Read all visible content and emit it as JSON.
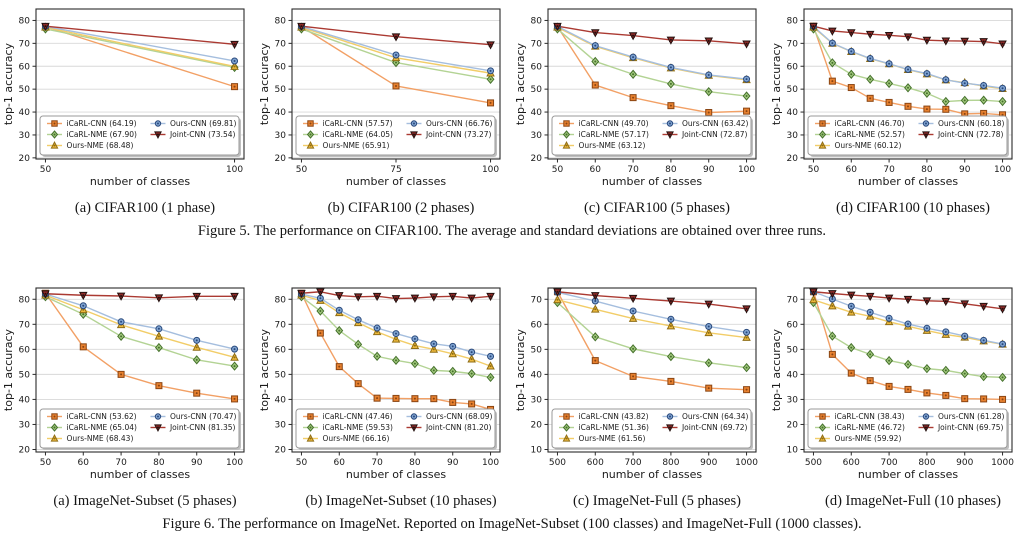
{
  "colors": {
    "background": "#ffffff",
    "grid": "#d8d8d8",
    "axis_border": "#2b2b2b",
    "tick_text": "#1a1a1a",
    "legend_border": "#999999",
    "legend_shadow": "#bfbfbf"
  },
  "palette": {
    "iCaRL-CNN": {
      "marker": "square",
      "line": "#f2a065",
      "fill": "#e8812f",
      "edge": "#8a4513"
    },
    "iCaRL-NME": {
      "marker": "diamond",
      "line": "#b3d394",
      "fill": "#a2c87d",
      "edge": "#45712c"
    },
    "Ours-NME": {
      "marker": "triangle-up",
      "line": "#f2cd68",
      "fill": "#edb93c",
      "edge": "#8f6d14"
    },
    "Ours-CNN": {
      "marker": "circle",
      "line": "#a5bede",
      "fill": "#7fa3d1",
      "edge": "#29497c"
    },
    "Joint-CNN": {
      "marker": "triangle-down",
      "line": "#ab3a32",
      "fill": "#8e2a28",
      "edge": "#23100e"
    }
  },
  "figures": [
    {
      "caption": "Figure 5. The performance on CIFAR100. The average and standard deviations are obtained over three runs."
    },
    {
      "caption": "Figure 6. The performance on ImageNet. Reported on ImageNet-Subset (100 classes) and ImageNet-Full (1000 classes)."
    }
  ],
  "chart_data": [
    {
      "subcaption": "(a) CIFAR100 (1 phase)",
      "type": "line",
      "xlabel": "number of classes",
      "ylabel": "top-1 accuracy",
      "x": [
        50,
        100
      ],
      "xticks": [
        50,
        100
      ],
      "yticks": [
        20,
        30,
        40,
        50,
        60,
        70,
        80
      ],
      "ylim": [
        19.5,
        85
      ],
      "err": 0.7,
      "legend": {
        "position": "lower left",
        "columns": 2
      },
      "series": [
        {
          "name": "iCaRL-CNN",
          "label": "iCaRL-CNN (64.19)",
          "values": [
            77.3,
            51.1
          ]
        },
        {
          "name": "iCaRL-NME",
          "label": "iCaRL-NME (67.90)",
          "values": [
            76.3,
            59.5
          ]
        },
        {
          "name": "Ours-NME",
          "label": "Ours-NME (68.48)",
          "values": [
            77.0,
            59.9
          ]
        },
        {
          "name": "Ours-CNN",
          "label": "Ours-CNN (69.81)",
          "values": [
            77.4,
            62.3
          ]
        },
        {
          "name": "Joint-CNN",
          "label": "Joint-CNN (73.54)",
          "values": [
            77.5,
            69.6
          ]
        }
      ]
    },
    {
      "subcaption": "(b) CIFAR100 (2 phases)",
      "type": "line",
      "xlabel": "number of classes",
      "ylabel": "top-1 accuracy",
      "x": [
        50,
        75,
        100
      ],
      "xticks": [
        50,
        75,
        100
      ],
      "yticks": [
        20,
        30,
        40,
        50,
        60,
        70,
        80
      ],
      "ylim": [
        19.5,
        85
      ],
      "err": 0.7,
      "legend": {
        "position": "lower left",
        "columns": 2
      },
      "series": [
        {
          "name": "iCaRL-CNN",
          "label": "iCaRL-CNN (57.57)",
          "values": [
            77.3,
            51.4,
            44.0
          ]
        },
        {
          "name": "iCaRL-NME",
          "label": "iCaRL-NME (64.05)",
          "values": [
            76.3,
            61.6,
            54.3
          ]
        },
        {
          "name": "Ours-NME",
          "label": "Ours-NME (65.91)",
          "values": [
            77.0,
            63.7,
            57.0
          ]
        },
        {
          "name": "Ours-CNN",
          "label": "Ours-CNN (66.76)",
          "values": [
            77.4,
            64.9,
            58.0
          ]
        },
        {
          "name": "Joint-CNN",
          "label": "Joint-CNN (73.27)",
          "values": [
            77.5,
            72.9,
            69.4
          ]
        }
      ]
    },
    {
      "subcaption": "(c) CIFAR100 (5 phases)",
      "type": "line",
      "xlabel": "number of classes",
      "ylabel": "top-1 accuracy",
      "x": [
        50,
        60,
        70,
        80,
        90,
        100
      ],
      "xticks": [
        50,
        60,
        70,
        80,
        90,
        100
      ],
      "yticks": [
        20,
        30,
        40,
        50,
        60,
        70,
        80
      ],
      "ylim": [
        19.5,
        85
      ],
      "err": 0.7,
      "legend": {
        "position": "lower left",
        "columns": 2
      },
      "series": [
        {
          "name": "iCaRL-CNN",
          "label": "iCaRL-CNN (49.70)",
          "values": [
            77.3,
            51.8,
            46.3,
            42.8,
            39.8,
            40.4
          ]
        },
        {
          "name": "iCaRL-NME",
          "label": "iCaRL-NME (57.17)",
          "values": [
            76.3,
            62.1,
            56.5,
            52.3,
            48.9,
            47.0
          ]
        },
        {
          "name": "Ours-NME",
          "label": "Ours-NME (63.12)",
          "values": [
            77.0,
            68.7,
            63.7,
            59.2,
            56.0,
            54.1
          ]
        },
        {
          "name": "Ours-CNN",
          "label": "Ours-CNN (63.42)",
          "values": [
            77.4,
            69.0,
            64.0,
            59.5,
            56.2,
            54.4
          ]
        },
        {
          "name": "Joint-CNN",
          "label": "Joint-CNN (72.87)",
          "values": [
            77.5,
            74.7,
            73.4,
            71.5,
            71.1,
            69.8
          ]
        }
      ]
    },
    {
      "subcaption": "(d) CIFAR100 (10 phases)",
      "type": "line",
      "xlabel": "number of classes",
      "ylabel": "top-1 accuracy",
      "x": [
        50,
        55,
        60,
        65,
        70,
        75,
        80,
        85,
        90,
        95,
        100
      ],
      "xticks": [
        50,
        60,
        70,
        80,
        90,
        100
      ],
      "yticks": [
        20,
        30,
        40,
        50,
        60,
        70,
        80
      ],
      "ylim": [
        19.5,
        85
      ],
      "err": 0.7,
      "legend": {
        "position": "lower left",
        "columns": 2
      },
      "series": [
        {
          "name": "iCaRL-CNN",
          "label": "iCaRL-CNN (46.70)",
          "values": [
            77.5,
            53.5,
            50.7,
            46.0,
            44.2,
            42.5,
            41.3,
            41.2,
            39.2,
            39.4,
            38.8
          ]
        },
        {
          "name": "iCaRL-NME",
          "label": "iCaRL-NME (52.57)",
          "values": [
            76.3,
            61.5,
            56.5,
            54.3,
            52.5,
            50.6,
            48.2,
            44.6,
            45.1,
            45.2,
            44.6
          ]
        },
        {
          "name": "Ours-NME",
          "label": "Ours-NME (60.12)",
          "values": [
            77.0,
            70.0,
            66.4,
            63.3,
            61.0,
            58.5,
            56.6,
            54.0,
            52.8,
            51.3,
            50.2
          ]
        },
        {
          "name": "Ours-CNN",
          "label": "Ours-CNN (60.18)",
          "values": [
            77.4,
            70.1,
            66.5,
            63.4,
            61.1,
            58.6,
            56.8,
            54.1,
            52.6,
            51.6,
            50.4
          ]
        },
        {
          "name": "Joint-CNN",
          "label": "Joint-CNN (72.78)",
          "values": [
            77.5,
            75.4,
            74.7,
            74.0,
            73.5,
            72.9,
            71.4,
            71.1,
            71.0,
            70.8,
            69.8
          ]
        }
      ]
    },
    {
      "subcaption": "(a) ImageNet-Subset (5 phases)",
      "type": "line",
      "xlabel": "number of classes",
      "ylabel": "top-1 accuracy",
      "x": [
        50,
        60,
        70,
        80,
        90,
        100
      ],
      "xticks": [
        50,
        60,
        70,
        80,
        90,
        100
      ],
      "yticks": [
        20,
        30,
        40,
        50,
        60,
        70,
        80
      ],
      "ylim": [
        19,
        84.5
      ],
      "err": 0.7,
      "legend": {
        "position": "lower left",
        "columns": 2
      },
      "series": [
        {
          "name": "iCaRL-CNN",
          "label": "iCaRL-CNN (53.62)",
          "values": [
            82.4,
            61.0,
            50.0,
            45.5,
            42.5,
            40.2
          ]
        },
        {
          "name": "iCaRL-NME",
          "label": "iCaRL-NME (65.04)",
          "values": [
            81.0,
            74.0,
            65.2,
            60.7,
            55.8,
            53.3
          ]
        },
        {
          "name": "Ours-NME",
          "label": "Ours-NME (68.43)",
          "values": [
            81.6,
            75.8,
            69.8,
            65.2,
            60.8,
            56.8
          ]
        },
        {
          "name": "Ours-CNN",
          "label": "Ours-CNN (70.47)",
          "values": [
            82.1,
            77.4,
            71.0,
            68.2,
            63.6,
            60.1
          ]
        },
        {
          "name": "Joint-CNN",
          "label": "Joint-CNN (81.35)",
          "values": [
            82.2,
            81.6,
            81.3,
            80.6,
            81.2,
            81.2
          ]
        }
      ]
    },
    {
      "subcaption": "(b) ImageNet-Subset (10 phases)",
      "type": "line",
      "xlabel": "number of classes",
      "ylabel": "top-1 accuracy",
      "x": [
        50,
        55,
        60,
        65,
        70,
        75,
        80,
        85,
        90,
        95,
        100
      ],
      "xticks": [
        50,
        60,
        70,
        80,
        90,
        100
      ],
      "yticks": [
        20,
        30,
        40,
        50,
        60,
        70,
        80
      ],
      "ylim": [
        19,
        84.5
      ],
      "err": 0.7,
      "legend": {
        "position": "lower left",
        "columns": 2
      },
      "series": [
        {
          "name": "iCaRL-CNN",
          "label": "iCaRL-CNN (47.46)",
          "values": [
            82.4,
            66.5,
            53.1,
            46.3,
            40.5,
            40.4,
            40.3,
            40.3,
            38.8,
            38.2,
            36.0
          ]
        },
        {
          "name": "iCaRL-NME",
          "label": "iCaRL-NME (59.53)",
          "values": [
            81.0,
            75.3,
            67.5,
            62.0,
            57.2,
            55.6,
            54.3,
            51.6,
            51.2,
            50.3,
            48.8
          ]
        },
        {
          "name": "Ours-NME",
          "label": "Ours-NME (66.16)",
          "values": [
            81.6,
            79.5,
            74.6,
            70.6,
            67.0,
            64.0,
            61.5,
            60.0,
            58.2,
            56.1,
            53.3
          ]
        },
        {
          "name": "Ours-CNN",
          "label": "Ours-CNN (68.09)",
          "values": [
            82.1,
            80.4,
            75.6,
            71.8,
            68.5,
            66.3,
            64.2,
            62.2,
            61.2,
            58.9,
            57.2
          ]
        },
        {
          "name": "Joint-CNN",
          "label": "Joint-CNN (81.20)",
          "values": [
            82.4,
            83.0,
            81.5,
            81.0,
            81.2,
            80.3,
            80.5,
            81.0,
            81.2,
            80.5,
            81.2
          ]
        }
      ]
    },
    {
      "subcaption": "(c) ImageNet-Full (5 phases)",
      "type": "line",
      "xlabel": "number of classes",
      "ylabel": "top-1 accuracy",
      "x": [
        500,
        600,
        700,
        800,
        900,
        1000
      ],
      "xticks": [
        500,
        600,
        700,
        800,
        900,
        1000
      ],
      "yticks": [
        10,
        20,
        30,
        40,
        50,
        60,
        70
      ],
      "ylim": [
        9,
        74.5
      ],
      "err": 0.7,
      "legend": {
        "position": "lower left",
        "columns": 2
      },
      "series": [
        {
          "name": "iCaRL-CNN",
          "label": "iCaRL-CNN (43.82)",
          "values": [
            73.0,
            45.5,
            39.2,
            37.2,
            34.5,
            33.9
          ]
        },
        {
          "name": "iCaRL-NME",
          "label": "iCaRL-NME (51.36)",
          "values": [
            68.7,
            55.0,
            50.2,
            47.1,
            44.6,
            42.7
          ]
        },
        {
          "name": "Ours-NME",
          "label": "Ours-NME (61.56)",
          "values": [
            69.8,
            66.0,
            62.3,
            59.3,
            56.6,
            54.7
          ]
        },
        {
          "name": "Ours-CNN",
          "label": "Ours-CNN (64.34)",
          "values": [
            72.8,
            69.3,
            65.3,
            62.0,
            59.1,
            56.8
          ]
        },
        {
          "name": "Joint-CNN",
          "label": "Joint-CNN (69.72)",
          "values": [
            73.0,
            71.5,
            70.4,
            69.3,
            68.1,
            66.2
          ]
        }
      ]
    },
    {
      "subcaption": "(d) ImageNet-Full (10 phases)",
      "type": "line",
      "xlabel": "number of classes",
      "ylabel": "top-1 accuracy",
      "x": [
        500,
        550,
        600,
        650,
        700,
        750,
        800,
        850,
        900,
        950,
        1000
      ],
      "xticks": [
        500,
        600,
        700,
        800,
        900,
        1000
      ],
      "yticks": [
        10,
        20,
        30,
        40,
        50,
        60,
        70
      ],
      "ylim": [
        9,
        74.5
      ],
      "err": 0.7,
      "legend": {
        "position": "lower left",
        "columns": 2
      },
      "series": [
        {
          "name": "iCaRL-CNN",
          "label": "iCaRL-CNN (38.43)",
          "values": [
            73.0,
            48.0,
            40.5,
            37.5,
            35.2,
            34.0,
            32.6,
            31.6,
            30.3,
            30.2,
            30.0
          ]
        },
        {
          "name": "iCaRL-NME",
          "label": "iCaRL-NME (46.72)",
          "values": [
            68.7,
            55.3,
            50.7,
            48.0,
            45.5,
            44.0,
            42.3,
            41.6,
            40.3,
            39.1,
            38.8
          ]
        },
        {
          "name": "Ours-NME",
          "label": "Ours-NME (59.92)",
          "values": [
            69.8,
            67.3,
            64.8,
            63.2,
            61.0,
            59.2,
            57.5,
            55.9,
            54.8,
            53.3,
            52.0
          ]
        },
        {
          "name": "Ours-CNN",
          "label": "Ours-CNN (61.28)",
          "values": [
            73.0,
            70.1,
            67.2,
            64.8,
            62.4,
            60.1,
            58.4,
            57.0,
            55.3,
            53.6,
            52.1
          ]
        },
        {
          "name": "Joint-CNN",
          "label": "Joint-CNN (69.75)",
          "values": [
            73.0,
            72.3,
            71.7,
            71.2,
            70.5,
            70.0,
            69.4,
            69.2,
            68.2,
            67.2,
            66.2
          ]
        }
      ]
    }
  ]
}
